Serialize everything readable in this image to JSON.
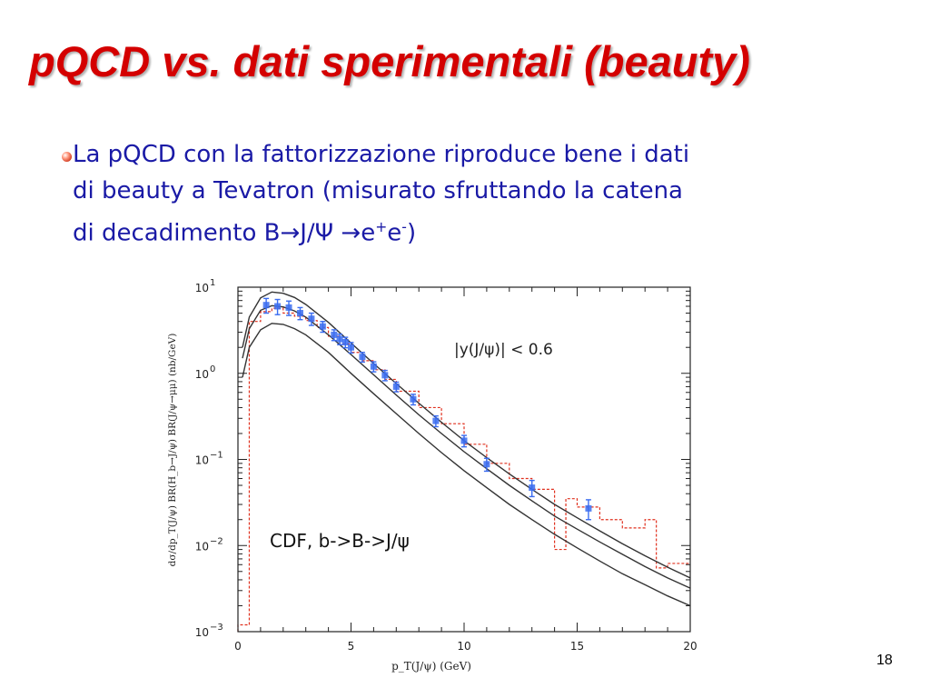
{
  "slide": {
    "title": "pQCD vs. dati sperimentali (beauty)",
    "bullet": {
      "line1": "La pQCD con la fattorizzazione riproduce bene i dati",
      "line2": "di beauty a Tevatron (misurato sfruttando la catena",
      "line3_prefix": "di decadimento B",
      "arrow1": "→",
      "jpsi": "J/Ψ ",
      "arrow2": "→",
      "e1": "e",
      "plus": "+",
      "e2": "e",
      "minus": "-",
      "close": ")"
    },
    "page_number": "18"
  },
  "colors": {
    "title": "#d40000",
    "text": "#1a1aa6",
    "data_points": "#3a6cf0",
    "dashed": "#e0301e",
    "theory": "#333333"
  },
  "chart_data": {
    "type": "scatter",
    "xlabel": "p_T(J/ψ) (GeV)",
    "ylabel": "dσ/dp_T(J/ψ) BR(H_b→J/ψ) BR(J/ψ→μμ) (nb/GeV)",
    "xlim": [
      0,
      20
    ],
    "ylim": [
      0.001,
      10
    ],
    "yscale": "log",
    "x_ticks": [
      "0",
      "5",
      "10",
      "15",
      "20"
    ],
    "y_ticks": [
      {
        "value": 0.001,
        "mant": "10",
        "exp": "−3"
      },
      {
        "value": 0.01,
        "mant": "10",
        "exp": "−2"
      },
      {
        "value": 0.1,
        "mant": "10",
        "exp": "−1"
      },
      {
        "value": 1,
        "mant": "10",
        "exp": "0"
      },
      {
        "value": 10,
        "mant": "10",
        "exp": "1"
      }
    ],
    "annotations": {
      "rapidity": "|y(J/ψ)|  <  0.6",
      "label": "CDF, b->B->J/ψ"
    },
    "data": [
      {
        "x": 1.25,
        "y": 6.2,
        "err": 1.2
      },
      {
        "x": 1.75,
        "y": 6.0,
        "err": 1.2
      },
      {
        "x": 2.25,
        "y": 5.8,
        "err": 1.1
      },
      {
        "x": 2.75,
        "y": 5.0,
        "err": 0.8
      },
      {
        "x": 3.25,
        "y": 4.3,
        "err": 0.7
      },
      {
        "x": 3.75,
        "y": 3.5,
        "err": 0.5
      },
      {
        "x": 4.25,
        "y": 2.8,
        "err": 0.4
      },
      {
        "x": 4.5,
        "y": 2.5,
        "err": 0.35
      },
      {
        "x": 4.75,
        "y": 2.3,
        "err": 0.32
      },
      {
        "x": 5.0,
        "y": 2.0,
        "err": 0.28
      },
      {
        "x": 5.5,
        "y": 1.55,
        "err": 0.2
      },
      {
        "x": 6.0,
        "y": 1.2,
        "err": 0.16
      },
      {
        "x": 6.5,
        "y": 0.95,
        "err": 0.13
      },
      {
        "x": 7.0,
        "y": 0.7,
        "err": 0.09
      },
      {
        "x": 7.75,
        "y": 0.5,
        "err": 0.07
      },
      {
        "x": 8.75,
        "y": 0.28,
        "err": 0.04
      },
      {
        "x": 10.0,
        "y": 0.165,
        "err": 0.025
      },
      {
        "x": 11.0,
        "y": 0.088,
        "err": 0.015
      },
      {
        "x": 13.0,
        "y": 0.047,
        "err": 0.01
      },
      {
        "x": 15.5,
        "y": 0.027,
        "err": 0.007
      }
    ],
    "theory_curves": [
      {
        "x": [
          0.2,
          0.5,
          1.0,
          1.5,
          2.0,
          2.5,
          3,
          4,
          5,
          6,
          7,
          8,
          9,
          10,
          11,
          12,
          13,
          14,
          15,
          16,
          17,
          18,
          19,
          20
        ],
        "y": [
          2.0,
          4.5,
          7.5,
          8.8,
          8.5,
          7.6,
          6.3,
          3.9,
          2.25,
          1.3,
          0.76,
          0.45,
          0.27,
          0.165,
          0.105,
          0.068,
          0.045,
          0.03,
          0.021,
          0.0148,
          0.0105,
          0.0076,
          0.0056,
          0.0042
        ]
      },
      {
        "x": [
          0.2,
          0.5,
          1.0,
          1.5,
          2.0,
          2.5,
          3,
          4,
          5,
          6,
          7,
          8,
          9,
          10,
          11,
          12,
          13,
          14,
          15,
          16,
          17,
          18,
          19,
          20
        ],
        "y": [
          1.5,
          3.3,
          5.4,
          6.1,
          5.9,
          5.3,
          4.5,
          2.8,
          1.65,
          0.96,
          0.56,
          0.33,
          0.2,
          0.123,
          0.078,
          0.05,
          0.033,
          0.022,
          0.0155,
          0.011,
          0.0079,
          0.0057,
          0.0042,
          0.0032
        ]
      },
      {
        "x": [
          0.2,
          0.5,
          1.0,
          1.5,
          2.0,
          2.5,
          3,
          4,
          5,
          6,
          7,
          8,
          9,
          10,
          11,
          12,
          13,
          14,
          15,
          16,
          17,
          18,
          19,
          20
        ],
        "y": [
          0.9,
          2.0,
          3.2,
          3.8,
          3.7,
          3.3,
          2.8,
          1.75,
          1.0,
          0.58,
          0.34,
          0.2,
          0.12,
          0.074,
          0.047,
          0.03,
          0.02,
          0.0135,
          0.0094,
          0.0066,
          0.0047,
          0.0035,
          0.0026,
          0.002
        ]
      }
    ],
    "dashed_histogram": [
      {
        "x0": 0.0,
        "x1": 0.5,
        "y": 0.0012
      },
      {
        "x0": 0.5,
        "x1": 1.0,
        "y": 4.0
      },
      {
        "x0": 1.0,
        "x1": 1.5,
        "y": 5.2
      },
      {
        "x0": 1.5,
        "x1": 2.0,
        "y": 5.7
      },
      {
        "x0": 2.0,
        "x1": 2.5,
        "y": 5.0
      },
      {
        "x0": 2.5,
        "x1": 3.0,
        "y": 4.6
      },
      {
        "x0": 3.0,
        "x1": 3.5,
        "y": 4.1
      },
      {
        "x0": 3.5,
        "x1": 4.0,
        "y": 3.4
      },
      {
        "x0": 4.0,
        "x1": 4.5,
        "y": 2.7
      },
      {
        "x0": 4.5,
        "x1": 5.0,
        "y": 2.2
      },
      {
        "x0": 5.0,
        "x1": 5.5,
        "y": 1.75
      },
      {
        "x0": 5.5,
        "x1": 6.0,
        "y": 1.4
      },
      {
        "x0": 6.0,
        "x1": 6.5,
        "y": 1.1
      },
      {
        "x0": 6.5,
        "x1": 7.0,
        "y": 0.85
      },
      {
        "x0": 7.0,
        "x1": 8.0,
        "y": 0.62
      },
      {
        "x0": 8.0,
        "x1": 9.0,
        "y": 0.4
      },
      {
        "x0": 9.0,
        "x1": 10.0,
        "y": 0.26
      },
      {
        "x0": 10.0,
        "x1": 11.0,
        "y": 0.15
      },
      {
        "x0": 11.0,
        "x1": 12.0,
        "y": 0.09
      },
      {
        "x0": 12.0,
        "x1": 13.0,
        "y": 0.06
      },
      {
        "x0": 13.0,
        "x1": 14.0,
        "y": 0.045
      },
      {
        "x0": 14.0,
        "x1": 14.5,
        "y": 0.009
      },
      {
        "x0": 14.5,
        "x1": 15.0,
        "y": 0.035
      },
      {
        "x0": 15.0,
        "x1": 16.0,
        "y": 0.028
      },
      {
        "x0": 16.0,
        "x1": 17.0,
        "y": 0.02
      },
      {
        "x0": 17.0,
        "x1": 18.0,
        "y": 0.016
      },
      {
        "x0": 18.0,
        "x1": 18.5,
        "y": 0.02
      },
      {
        "x0": 18.5,
        "x1": 19.0,
        "y": 0.0055
      },
      {
        "x0": 19.0,
        "x1": 20.0,
        "y": 0.0062
      }
    ]
  }
}
